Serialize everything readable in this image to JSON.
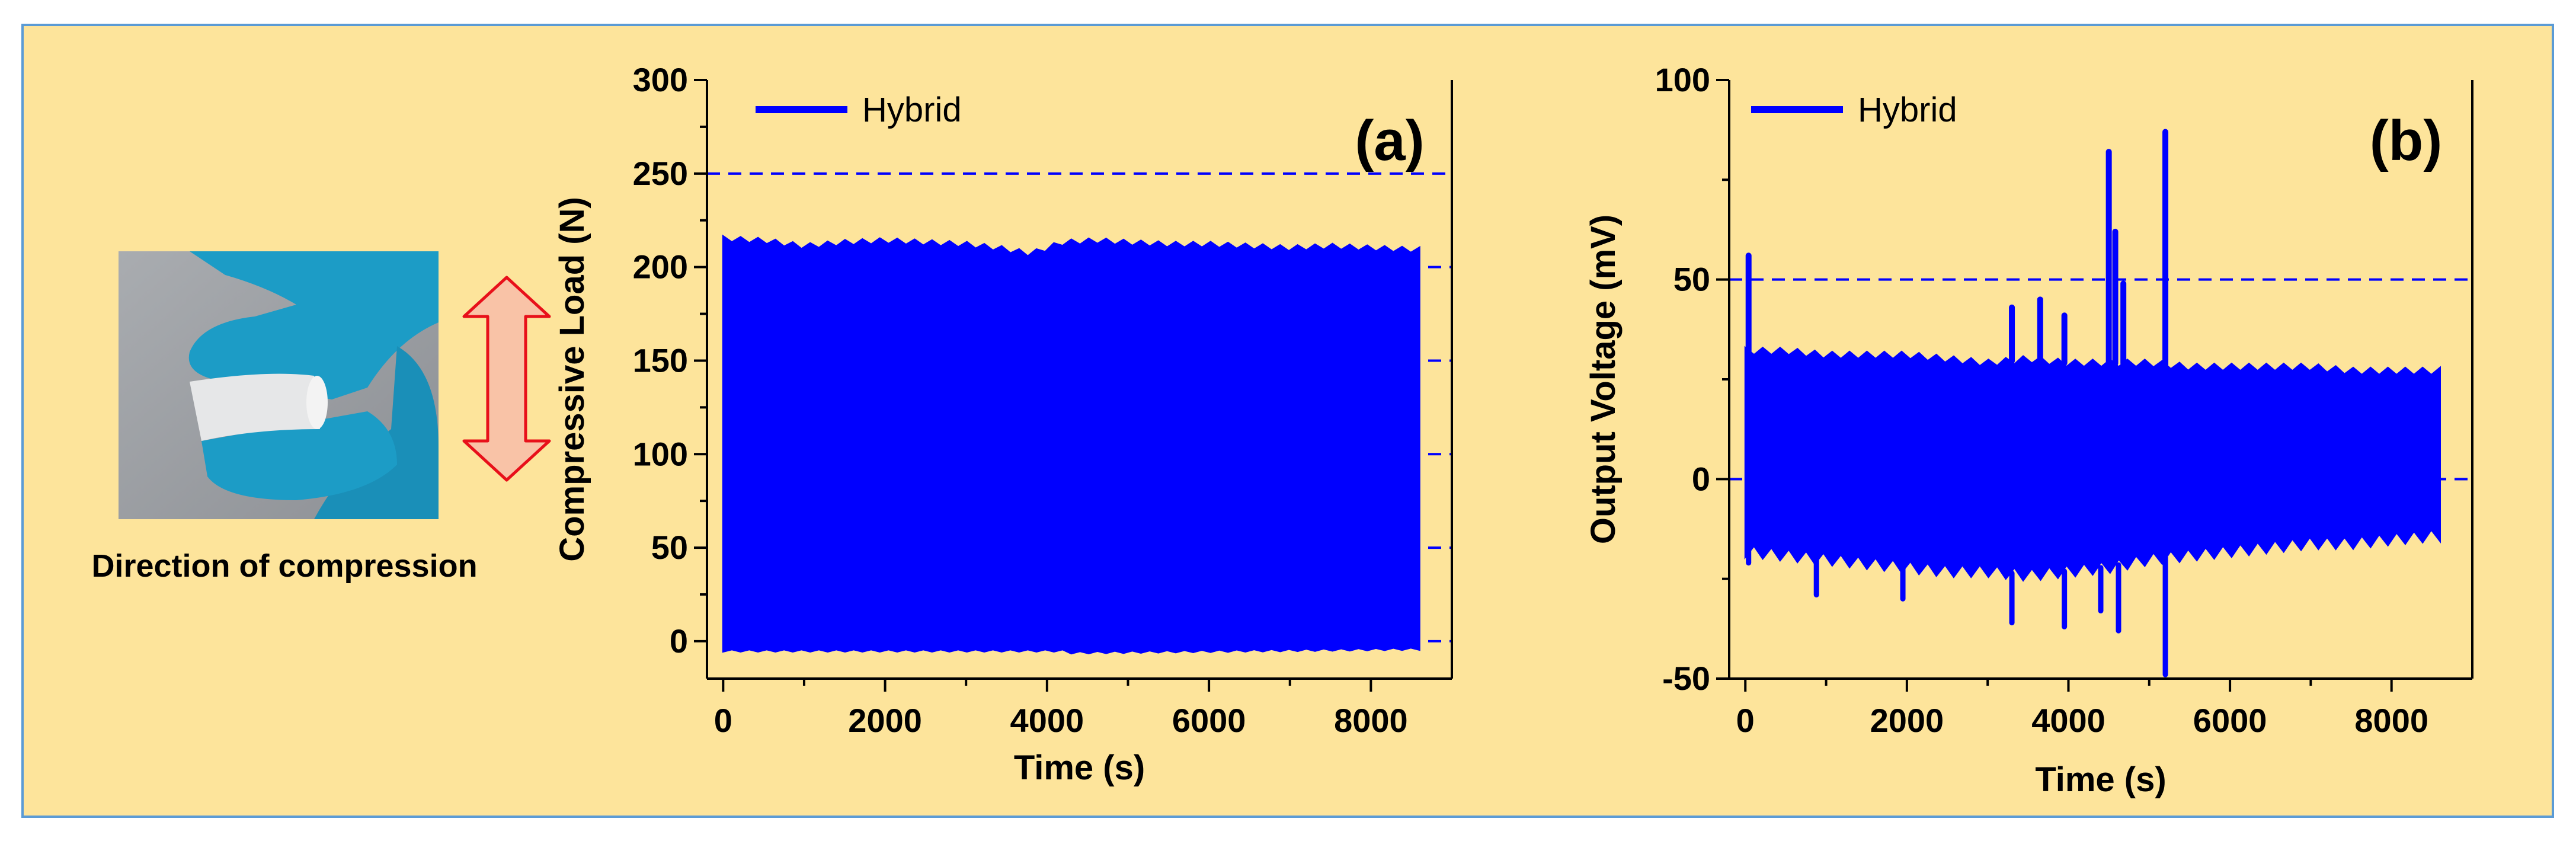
{
  "colors": {
    "background": "#fde49b",
    "border": "#5b9bd5",
    "series": "#0000ff",
    "arrow_fill": "#f9c3a7",
    "arrow_stroke": "#e8101a",
    "glove": "#1c9cc6"
  },
  "figure": {
    "caption": "Direction of compression",
    "photo_icon": "photo-hand-compressing-sample",
    "arrow_icon": "double-headed-arrow-icon"
  },
  "chart_data": [
    {
      "type": "line",
      "panel_label": "(a)",
      "title": "",
      "xlabel": "Time (s)",
      "ylabel": "Compressive Load (N)",
      "xlim": [
        -200,
        9000
      ],
      "ylim": [
        -20,
        300
      ],
      "xticks": [
        0,
        2000,
        4000,
        6000,
        8000
      ],
      "yticks": [
        0,
        50,
        100,
        150,
        200,
        250,
        300
      ],
      "reference_lines": [
        250
      ],
      "grid": "dashed at y ticks on right edge",
      "legend": {
        "position": "top-left",
        "entries": [
          "Hybrid"
        ]
      },
      "series": [
        {
          "name": "Hybrid",
          "style": "dense-oscillation-band",
          "x_range": [
            0,
            8600
          ],
          "upper_envelope": {
            "x": [
              0,
              500,
              1000,
              1500,
              2000,
              2500,
              3000,
              3400,
              3800,
              4200,
              4600,
              5000,
              5500,
              6000,
              6500,
              7000,
              7500,
              8000,
              8600
            ],
            "y": [
              215,
              214,
              211,
              213,
              214,
              213,
              212,
              210,
              207,
              213,
              214,
              213,
              212,
              212,
              211,
              210,
              211,
              210,
              209
            ]
          },
          "lower_envelope": {
            "x": [
              0,
              4200,
              4300,
              8600
            ],
            "y": [
              -5,
              -5,
              -6,
              -4
            ]
          }
        }
      ]
    },
    {
      "type": "line",
      "panel_label": "(b)",
      "title": "",
      "xlabel": "Time (s)",
      "ylabel": "Output Voltage (mV)",
      "xlim": [
        -200,
        9000
      ],
      "ylim": [
        -50,
        100
      ],
      "xticks": [
        0,
        2000,
        4000,
        6000,
        8000
      ],
      "yticks": [
        -50,
        0,
        50,
        100
      ],
      "reference_lines": [
        50
      ],
      "grid": "dashed at y ticks",
      "legend": {
        "position": "top-left",
        "entries": [
          "Hybrid"
        ]
      },
      "series": [
        {
          "name": "Hybrid",
          "style": "dense-oscillation-band",
          "x_range": [
            0,
            8600
          ],
          "upper_envelope": {
            "x": [
              0,
              500,
              1000,
              1500,
              2000,
              2500,
              3000,
              3500,
              4000,
              4500,
              5000,
              5500,
              6000,
              6500,
              7000,
              7500,
              8000,
              8600
            ],
            "y": [
              32,
              32,
              31,
              31,
              31,
              30,
              29,
              30,
              29,
              29,
              29,
              28,
              28,
              28,
              28,
              27,
              27,
              27
            ]
          },
          "lower_envelope": {
            "x": [
              0,
              500,
              1000,
              1500,
              2000,
              2500,
              3000,
              3500,
              4000,
              4500,
              5000,
              5500,
              6000,
              6500,
              7000,
              7500,
              8000,
              8600
            ],
            "y": [
              -18,
              -19,
              -20,
              -21,
              -22,
              -23,
              -23,
              -24,
              -23,
              -22,
              -20,
              -19,
              -18,
              -17,
              -16,
              -16,
              -15,
              -14
            ]
          },
          "upper_spikes": [
            {
              "x": 40,
              "y": 56
            },
            {
              "x": 3300,
              "y": 43
            },
            {
              "x": 3650,
              "y": 45
            },
            {
              "x": 3950,
              "y": 41
            },
            {
              "x": 4500,
              "y": 82
            },
            {
              "x": 4580,
              "y": 62
            },
            {
              "x": 4680,
              "y": 49
            },
            {
              "x": 5200,
              "y": 87
            }
          ],
          "lower_spikes": [
            {
              "x": 40,
              "y": -21
            },
            {
              "x": 880,
              "y": -29
            },
            {
              "x": 1950,
              "y": -30
            },
            {
              "x": 3300,
              "y": -36
            },
            {
              "x": 3950,
              "y": -37
            },
            {
              "x": 4400,
              "y": -33
            },
            {
              "x": 4620,
              "y": -38
            },
            {
              "x": 5200,
              "y": -49
            }
          ]
        }
      ]
    }
  ]
}
